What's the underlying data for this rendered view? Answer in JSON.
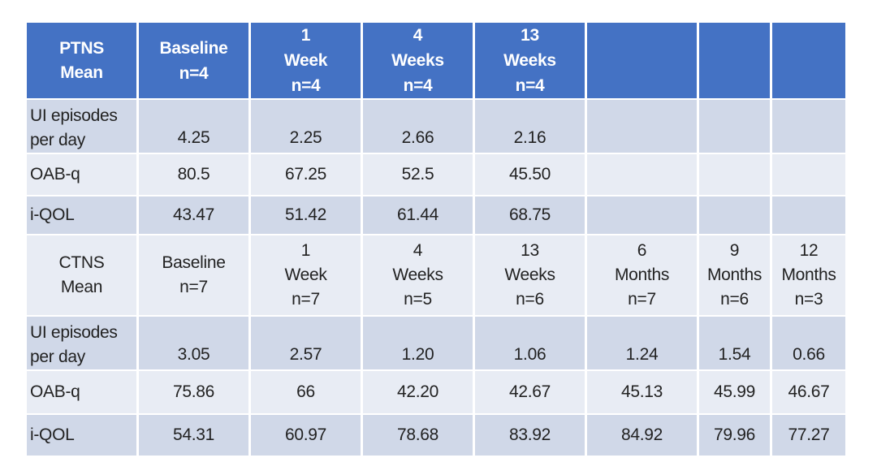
{
  "ptns": {
    "header": [
      "PTNS\nMean",
      "Baseline\nn=4",
      "1\nWeek\nn=4",
      "4\nWeeks\nn=4",
      "13\nWeeks\nn=4",
      "",
      "",
      ""
    ],
    "rows": [
      {
        "label": "UI episodes\nper day",
        "values": [
          "4.25",
          "2.25",
          "2.66",
          "2.16",
          "",
          "",
          ""
        ]
      },
      {
        "label": "OAB-q",
        "values": [
          "80.5",
          "67.25",
          "52.5",
          "45.50",
          "",
          "",
          ""
        ]
      },
      {
        "label": "i-QOL",
        "values": [
          "43.47",
          "51.42",
          "61.44",
          "68.75",
          "",
          "",
          ""
        ]
      }
    ]
  },
  "ctns": {
    "header": [
      "CTNS\nMean",
      "Baseline\nn=7",
      "1\nWeek\nn=7",
      "4\nWeeks\nn=5",
      "13\nWeeks\nn=6",
      "6\nMonths\nn=7",
      "9\nMonths\nn=6",
      "12\nMonths\nn=3"
    ],
    "rows": [
      {
        "label": "UI episodes\nper day",
        "values": [
          "3.05",
          "2.57",
          "1.20",
          "1.06",
          "1.24",
          "1.54",
          "0.66"
        ]
      },
      {
        "label": "OAB-q",
        "values": [
          "75.86",
          "66",
          "42.20",
          "42.67",
          "45.13",
          "45.99",
          "46.67"
        ]
      },
      {
        "label": "i-QOL",
        "values": [
          "54.31",
          "60.97",
          "78.68",
          "83.92",
          "84.92",
          "79.96",
          "77.27"
        ]
      }
    ]
  },
  "colors": {
    "header_bg": "#4472c4",
    "band_dark": "#d0d8e8",
    "band_light": "#e8ecf4"
  }
}
